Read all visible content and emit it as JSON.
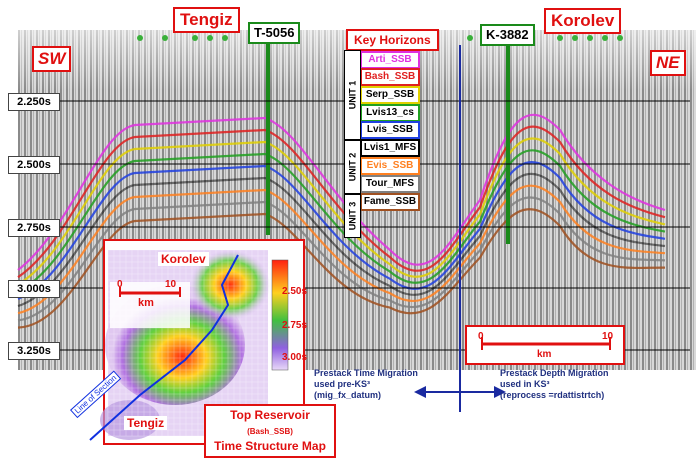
{
  "wells": {
    "tengiz": "Tengiz",
    "t5056": "T-5056",
    "k3882": "K-3882",
    "korolev": "Korolev"
  },
  "directions": {
    "sw": "SW",
    "ne": "NE"
  },
  "time_axis": [
    "2.250s",
    "2.500s",
    "2.750s",
    "3.000s",
    "3.250s"
  ],
  "key_horizons": {
    "title": "Key Horizons",
    "units": [
      "UNIT 1",
      "UNIT 2",
      "UNIT 3"
    ],
    "items": [
      {
        "label": "Arti_SSB",
        "color": "#e030e0"
      },
      {
        "label": "Bash_SSB",
        "color": "#e02020"
      },
      {
        "label": "Serp_SSB",
        "color": "#e0d000"
      },
      {
        "label": "Lvis13_cs",
        "color": "#20a020"
      },
      {
        "label": "Lvis_SSB",
        "color": "#2040e0"
      },
      {
        "label": "Lvis1_MFS",
        "color": "#000000"
      },
      {
        "label": "Evis_SSB",
        "color": "#ff8020"
      },
      {
        "label": "Tour_MFS",
        "color": "#808080"
      },
      {
        "label": "Fame_SSB",
        "color": "#a05020"
      }
    ]
  },
  "inset_map": {
    "korolev": "Korolev",
    "tengiz": "Tengiz",
    "line_of_section": "Line of Section",
    "scale_zero": "0",
    "scale_ten": "10",
    "scale_unit": "km",
    "colorbar": [
      "2.50s",
      "2.75s",
      "3.00s"
    ],
    "title_line1": "Top Reservoir",
    "title_paren": "(Bash_SSB)",
    "title_line2": "Time Structure Map"
  },
  "right_scale": {
    "zero": "0",
    "ten": "10",
    "unit": "km"
  },
  "notes": {
    "left_l1": "Prestack Time Migration",
    "left_l2": "used pre-KS³",
    "left_l3": "(mig_fx_datum)",
    "right_l1": "Prestack Depth Migration",
    "right_l2": "used in KS³",
    "right_l3": "(reprocess =rdattistrtch)"
  }
}
